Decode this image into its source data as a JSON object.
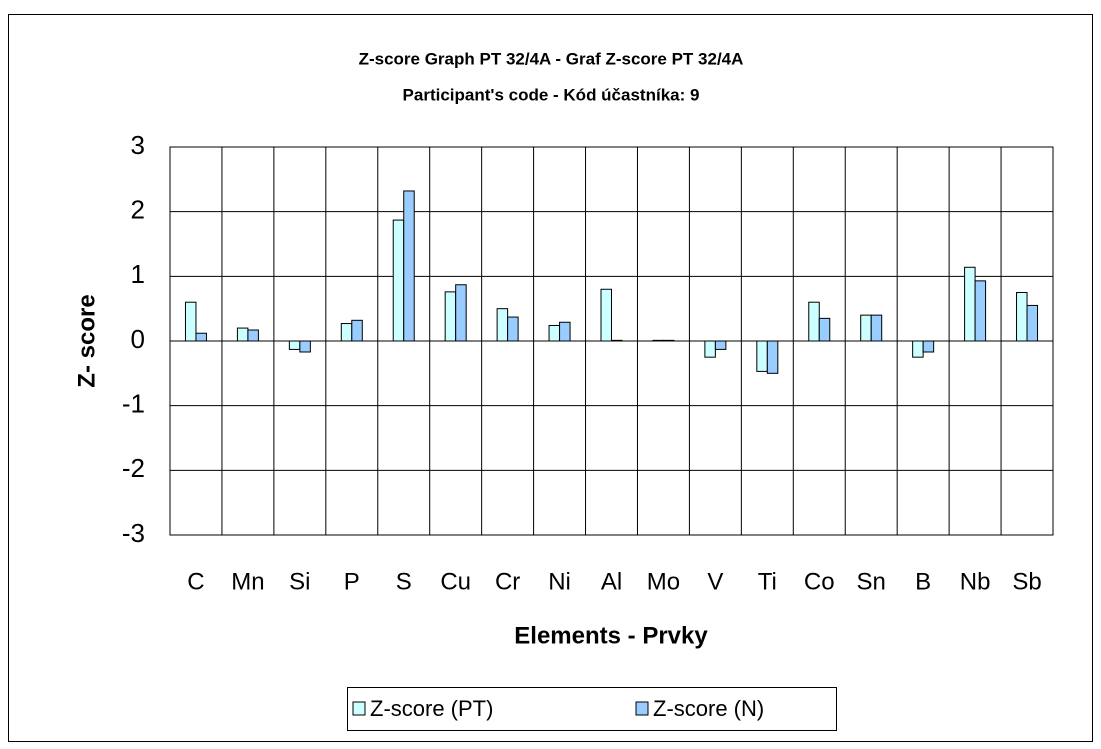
{
  "chart_data": {
    "type": "bar",
    "title": "Z-score Graph PT 32/4A - Graf Z-score PT 32/4A",
    "subtitle": "Participant's code - Kód účastníka:  9",
    "x_label": "Elements - Prvky",
    "y_label": "Z- score",
    "categories": [
      "C",
      "Mn",
      "Si",
      "P",
      "S",
      "Cu",
      "Cr",
      "Ni",
      "Al",
      "Mo",
      "V",
      "Ti",
      "Co",
      "Sn",
      "B",
      "Nb",
      "Sb"
    ],
    "series": [
      {
        "name": "Z-score (PT)",
        "color": "#ccffff",
        "values": [
          0.6,
          0.2,
          -0.13,
          0.27,
          1.87,
          0.76,
          0.5,
          0.24,
          0.8,
          0.01,
          -0.25,
          -0.47,
          0.6,
          0.4,
          -0.25,
          1.14,
          0.75
        ]
      },
      {
        "name": "Z-score (N)",
        "color": "#99ccff",
        "values": [
          0.12,
          0.17,
          -0.17,
          0.32,
          2.32,
          0.87,
          0.37,
          0.29,
          0.01,
          0.01,
          -0.13,
          -0.5,
          0.35,
          0.4,
          -0.17,
          0.93,
          0.55
        ]
      }
    ],
    "ylim": [
      -3,
      3
    ],
    "yticks": [
      -3,
      -2,
      -1,
      0,
      1,
      2,
      3
    ],
    "grid": true,
    "legend": "bottom"
  }
}
